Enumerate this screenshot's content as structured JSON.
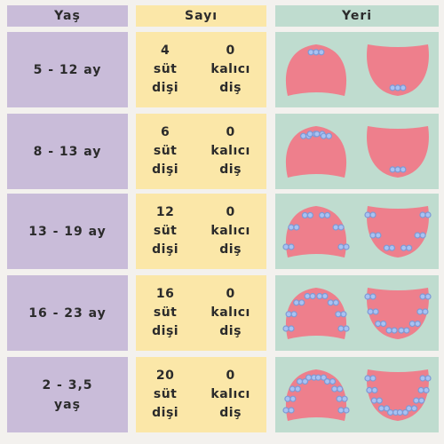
{
  "headers": {
    "age": "Yaş",
    "count": "Sayı",
    "location": "Yeri"
  },
  "rows": [
    {
      "age": "5 - 12 ay",
      "milk_num": "4",
      "milk_l1": "süt",
      "milk_l2": "dişi",
      "perm_num": "0",
      "perm_l1": "kalıcı",
      "perm_l2": "diş",
      "upper_teeth": 2,
      "lower_teeth": 2
    },
    {
      "age": "8 - 13 ay",
      "milk_num": "6",
      "milk_l1": "süt",
      "milk_l2": "dişi",
      "perm_num": "0",
      "perm_l1": "kalıcı",
      "perm_l2": "diş",
      "upper_teeth": 4,
      "lower_teeth": 2
    },
    {
      "age": "13 - 19 ay",
      "milk_num": "12",
      "milk_l1": "süt",
      "milk_l2": "dişi",
      "perm_num": "0",
      "perm_l1": "kalıcı",
      "perm_l2": "diş",
      "upper_teeth": 6,
      "lower_teeth": 6
    },
    {
      "age": "16 - 23 ay",
      "milk_num": "16",
      "milk_l1": "süt",
      "milk_l2": "dişi",
      "perm_num": "0",
      "perm_l1": "kalıcı",
      "perm_l2": "diş",
      "upper_teeth": 8,
      "lower_teeth": 8
    },
    {
      "age": "2 - 3,5 yaş",
      "milk_num": "20",
      "milk_l1": "süt",
      "milk_l2": "dişi",
      "perm_num": "0",
      "perm_l1": "kalıcı",
      "perm_l2": "diş",
      "upper_teeth": 10,
      "lower_teeth": 10
    }
  ]
}
